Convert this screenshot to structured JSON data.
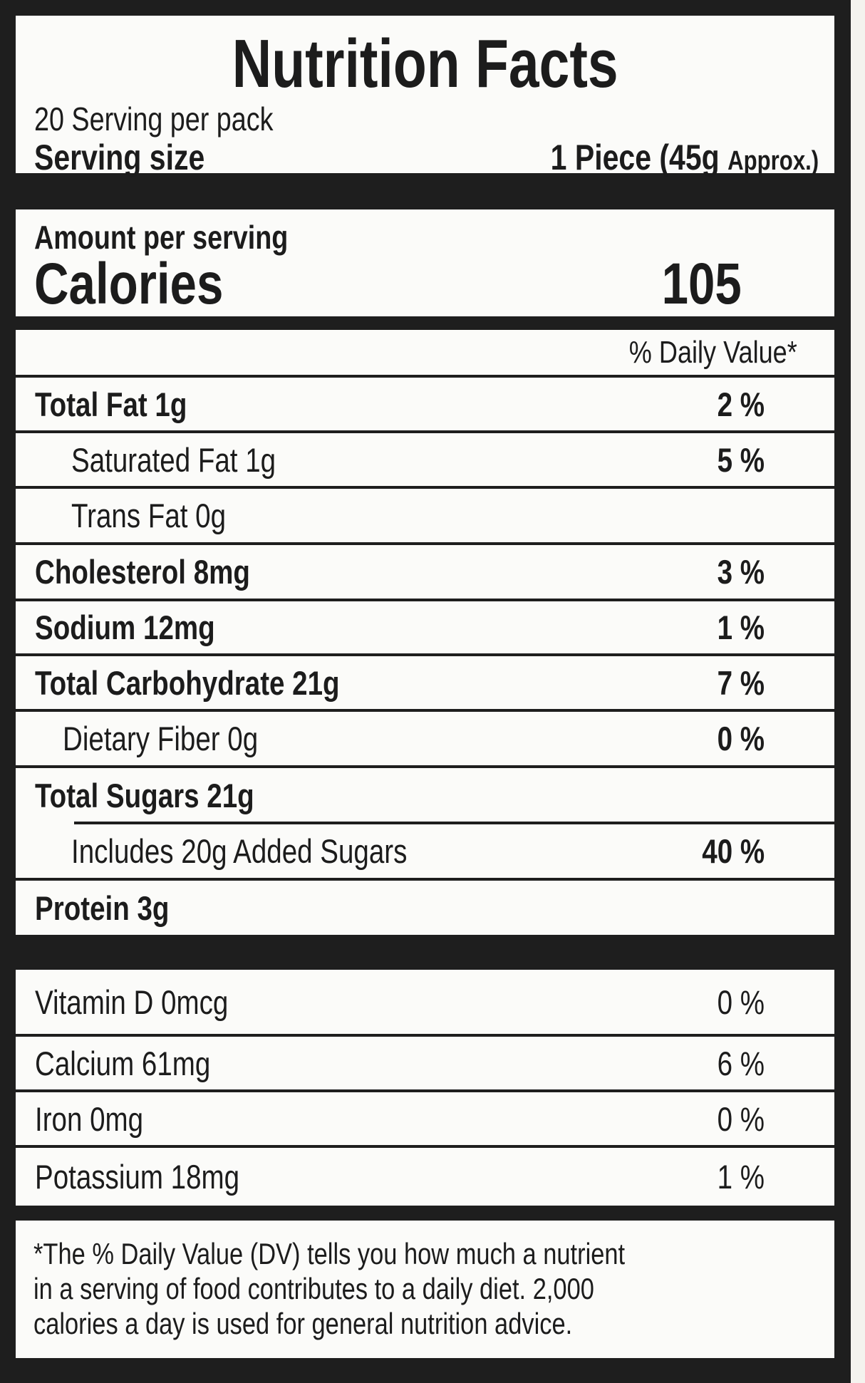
{
  "header": {
    "title": "Nutrition Facts",
    "servings_per_container": "20 Serving per pack",
    "serving_size_label": "Serving size",
    "serving_size_value": "1 Piece (45g",
    "serving_size_note": "Approx.)"
  },
  "calories": {
    "amount_label": "Amount per serving",
    "label": "Calories",
    "value": "105"
  },
  "daily_value_header": "% Daily Value*",
  "nutrients": [
    {
      "name": "Total Fat 1g",
      "dv": "2 %"
    },
    {
      "name": "Saturated Fat 1g",
      "dv": "5 %"
    },
    {
      "name": "Trans Fat 0g",
      "dv": ""
    },
    {
      "name": "Cholesterol 8mg",
      "dv": "3 %"
    },
    {
      "name": "Sodium 12mg",
      "dv": "1 %"
    },
    {
      "name": "Total Carbohydrate 21g",
      "dv": "7 %"
    },
    {
      "name": "Dietary Fiber 0g",
      "dv": "0 %"
    },
    {
      "name": "Total Sugars 21g",
      "dv": ""
    },
    {
      "name": "Includes 20g Added Sugars",
      "dv": "40 %"
    },
    {
      "name": "Protein 3g",
      "dv": ""
    }
  ],
  "vitamins": [
    {
      "name": "Vitamin D 0mcg",
      "dv": "0 %"
    },
    {
      "name": "Calcium 61mg",
      "dv": "6 %"
    },
    {
      "name": "Iron 0mg",
      "dv": "0 %"
    },
    {
      "name": "Potassium 18mg",
      "dv": "1 %"
    }
  ],
  "footnote": {
    "lines": [
      "*The % Daily Value (DV) tells you how much a nutrient",
      "in a serving of food contributes to a daily diet. 2,000",
      "calories a day is used for general nutrition advice."
    ]
  }
}
